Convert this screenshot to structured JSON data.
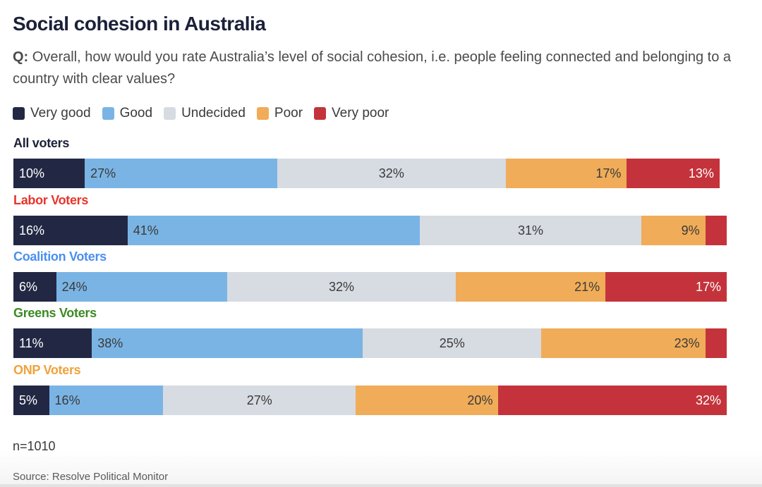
{
  "title": "Social cohesion in Australia",
  "question": {
    "prefix": "Q:",
    "text": " Overall, how would you rate Australia’s level of social cohesion, i.e. people feeling connected and belonging to a country with clear values?"
  },
  "colors": {
    "very_good": "#222844",
    "good": "#7ab4e4",
    "undecided": "#d7dbe2",
    "poor": "#f0ac58",
    "very_poor": "#c4333b"
  },
  "footnote": "n=1010",
  "source": "Source: Resolve Political Monitor",
  "chart_data": {
    "type": "bar",
    "orientation": "horizontal",
    "stacked": true,
    "title": "Social cohesion in Australia",
    "subtitle": "Q: Overall, how would you rate Australia’s level of social cohesion, i.e. people feeling connected and belonging to a country with clear values?",
    "xlabel": "",
    "ylabel": "",
    "xlim": [
      0,
      100
    ],
    "unit": "%",
    "legend_position": "top-left",
    "grid": false,
    "legend": [
      "Very good",
      "Good",
      "Undecided",
      "Poor",
      "Very poor"
    ],
    "categories": [
      "All voters",
      "Labor Voters",
      "Coalition Voters",
      "Greens Voters",
      "ONP Voters"
    ],
    "category_colors": [
      "#1b2138",
      "#e8352b",
      "#4a8ff0",
      "#3c8a23",
      "#f0a33a"
    ],
    "series": [
      {
        "name": "Very good",
        "color": "#222844",
        "label_color": "#ffffff",
        "values": [
          10,
          16,
          6,
          11,
          5
        ],
        "labels": [
          "10%",
          "16%",
          "6%",
          "11%",
          "5%"
        ],
        "label_align": "left"
      },
      {
        "name": "Good",
        "color": "#7ab4e4",
        "label_color": "#3a3a3a",
        "values": [
          27,
          41,
          24,
          38,
          16
        ],
        "labels": [
          "27%",
          "41%",
          "24%",
          "38%",
          "16%"
        ],
        "label_align": "left"
      },
      {
        "name": "Undecided",
        "color": "#d7dbe2",
        "label_color": "#3a3a3a",
        "values": [
          32,
          31,
          32,
          25,
          27
        ],
        "labels": [
          "32%",
          "31%",
          "32%",
          "25%",
          "27%"
        ],
        "label_align": "center"
      },
      {
        "name": "Poor",
        "color": "#f0ac58",
        "label_color": "#3a3a3a",
        "values": [
          17,
          9,
          21,
          23,
          20
        ],
        "labels": [
          "17%",
          "9%",
          "21%",
          "23%",
          "20%"
        ],
        "label_align": "right"
      },
      {
        "name": "Very poor",
        "color": "#c4333b",
        "label_color": "#ffffff",
        "values": [
          13,
          3,
          17,
          3,
          32
        ],
        "labels": [
          "13%",
          "",
          "17%",
          "",
          "32%"
        ],
        "label_align": "right"
      }
    ]
  }
}
